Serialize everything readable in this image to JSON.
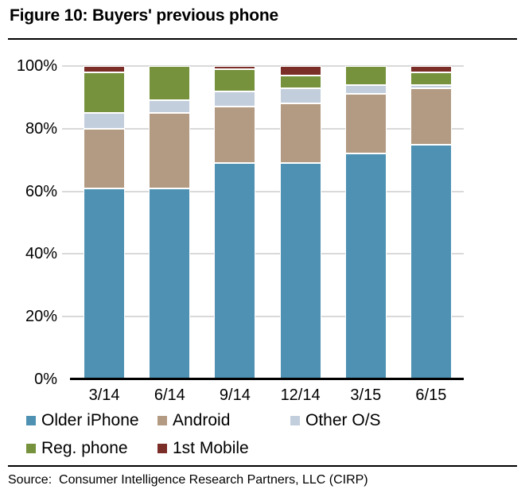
{
  "title": "Figure 10: Buyers' previous phone",
  "source": "Source:  Consumer Intelligence Research Partners, LLC (CIRP)",
  "colors": {
    "gridline": "#d9d9d9",
    "axis": "#000000",
    "rule": "#000000",
    "text": "#000000"
  },
  "chart_data": {
    "type": "bar",
    "stacked": true,
    "title": "Figure 10: Buyers' previous phone",
    "categories": [
      "3/14",
      "6/14",
      "9/14",
      "12/14",
      "3/15",
      "6/15"
    ],
    "series": [
      {
        "name": "Older iPhone",
        "color": "#4e91b2",
        "values": [
          61,
          61,
          69,
          69,
          72,
          75
        ]
      },
      {
        "name": "Android",
        "color": "#b39b83",
        "values": [
          19,
          24,
          18,
          19,
          19,
          18
        ]
      },
      {
        "name": "Other O/S",
        "color": "#c3cedd",
        "values": [
          5,
          4,
          5,
          5,
          3,
          1
        ]
      },
      {
        "name": "Reg. phone",
        "color": "#76923c",
        "values": [
          13,
          11,
          7,
          4,
          6,
          4
        ]
      },
      {
        "name": "1st Mobile",
        "color": "#7b2d28",
        "values": [
          2,
          0,
          1,
          3,
          0,
          2
        ]
      }
    ],
    "units": "percent",
    "ylim": [
      0,
      100
    ],
    "y_ticks": [
      "0%",
      "20%",
      "40%",
      "60%",
      "80%",
      "100%"
    ],
    "grid": "horizontal",
    "legend_position": "bottom"
  }
}
